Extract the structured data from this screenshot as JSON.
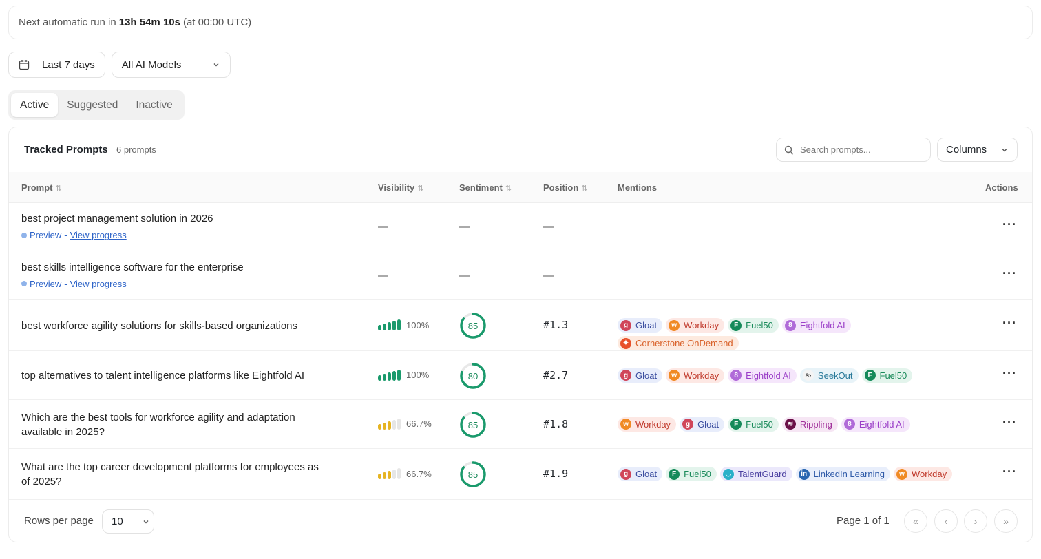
{
  "banner": {
    "prefix": "Next automatic run in",
    "countdown": "13h 54m 10s",
    "suffix": "(at 00:00 UTC)"
  },
  "filters": {
    "date_range": "Last 7 days",
    "model": "All AI Models"
  },
  "tabs": [
    {
      "label": "Active",
      "active": true
    },
    {
      "label": "Suggested"
    },
    {
      "label": "Inactive"
    }
  ],
  "table": {
    "title": "Tracked Prompts",
    "count": "6 prompts",
    "search_placeholder": "Search prompts...",
    "columns_label": "Columns",
    "headers": {
      "prompt": "Prompt",
      "visibility": "Visibility",
      "sentiment": "Sentiment",
      "position": "Position",
      "mentions": "Mentions",
      "actions": "Actions"
    },
    "rows": [
      {
        "prompt": "best project management solution in 2026",
        "status": "Preview",
        "link": "View progress",
        "visibility": "—",
        "sentiment": "—",
        "position": "—",
        "mentions": []
      },
      {
        "prompt": "best skills intelligence software for the enterprise",
        "status": "Preview",
        "link": "View progress",
        "visibility": "—",
        "sentiment": "—",
        "position": "—",
        "mentions": []
      },
      {
        "prompt": "best workforce agility solutions for skills-based organizations",
        "visibility": "100%",
        "visibility_bars": 5,
        "visibility_color": "#1a9a6c",
        "sentiment": "85",
        "position": "#1.3",
        "mentions": [
          "Gloat",
          "Workday",
          "Fuel50",
          "Eightfold AI",
          "Cornerstone OnDemand"
        ]
      },
      {
        "prompt": "top alternatives to talent intelligence platforms like Eightfold AI",
        "visibility": "100%",
        "visibility_bars": 5,
        "visibility_color": "#1a9a6c",
        "sentiment": "80",
        "position": "#2.7",
        "mentions": [
          "Gloat",
          "Workday",
          "Eightfold AI",
          "SeekOut",
          "Fuel50"
        ]
      },
      {
        "prompt": "Which are the best tools for workforce agility and adaptation available in 2025?",
        "visibility": "66.7%",
        "visibility_bars": 3,
        "visibility_color": "#e6b422",
        "sentiment": "85",
        "position": "#1.8",
        "mentions": [
          "Workday",
          "Gloat",
          "Fuel50",
          "Rippling",
          "Eightfold AI"
        ]
      },
      {
        "prompt": "What are the top career development platforms for employees as of 2025?",
        "visibility": "66.7%",
        "visibility_bars": 3,
        "visibility_color": "#e6b422",
        "sentiment": "85",
        "position": "#1.9",
        "mentions": [
          "Gloat",
          "Fuel50",
          "TalentGuard",
          "LinkedIn Learning",
          "Workday"
        ]
      }
    ]
  },
  "brands": {
    "Gloat": {
      "bg": "#e8edfb",
      "fg": "#3d4fa0",
      "icon": "g",
      "ic": "#d0465a"
    },
    "Workday": {
      "bg": "#fde8e4",
      "fg": "#c0392b",
      "icon": "w",
      "ic": "#f08a24"
    },
    "Fuel50": {
      "bg": "#e3f4ec",
      "fg": "#1a8a5a",
      "icon": "F",
      "ic": "#158a5a"
    },
    "Eightfold AI": {
      "bg": "#f5e6fb",
      "fg": "#9b3fc8",
      "icon": "8",
      "ic": "#b06ad8"
    },
    "Cornerstone OnDemand": {
      "bg": "#fdeadf",
      "fg": "#d9622b",
      "icon": "✦",
      "ic": "#e8502a"
    },
    "SeekOut": {
      "bg": "#e8f3f8",
      "fg": "#2a7a9a",
      "icon": "s›",
      "ic": "#f4f4f4"
    },
    "Rippling": {
      "bg": "#f6e6f4",
      "fg": "#a0309a",
      "icon": "≋",
      "ic": "#6b1048"
    },
    "TalentGuard": {
      "bg": "#ebe8fb",
      "fg": "#4a3fa0",
      "icon": "◡",
      "ic": "#2ab0c8"
    },
    "LinkedIn Learning": {
      "bg": "#e8eefb",
      "fg": "#2f5aa8",
      "icon": "in",
      "ic": "#2a66b0"
    }
  },
  "pagination": {
    "rows_label": "Rows per page",
    "rows_value": "10",
    "page_label": "Page 1 of 1"
  }
}
